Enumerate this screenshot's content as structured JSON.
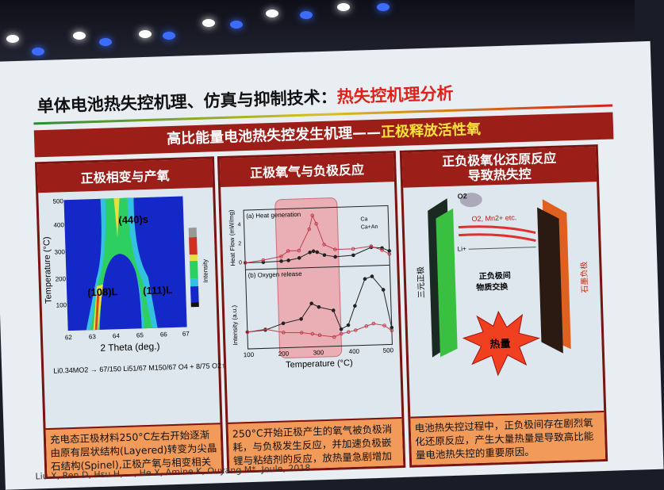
{
  "slide": {
    "title_main": "单体电池热失控机理、仿真与抑制技术：",
    "title_accent": "热失控机理分析",
    "banner_main": "高比能量电池热失控发生机理——",
    "banner_accent": "正极释放活性氧",
    "panels": [
      {
        "title": "正极相变与产氧",
        "ylabel": "Temperature (°C)",
        "xlabel": "2 Theta (deg.)",
        "colorbar_label": "Intensity",
        "yticks": [
          "100",
          "200",
          "300",
          "400",
          "500"
        ],
        "xticks": [
          "62",
          "63",
          "64",
          "65",
          "66",
          "67"
        ],
        "peaks": [
          "(440)s",
          "(108)L",
          "(111)L"
        ],
        "equation": "Li0.34MO2 → 67/150 Li51/67 M150/67 O4 + 8/75 O2↑",
        "text": "充电态正极材料250°C左右开始逐渐由原有层状结构(Layered)转变为尖晶石结构(Spinel),正极产氧与相变相关"
      },
      {
        "title": "正极氧气与负极反应",
        "ylabel_top": "Heat Flow (mW/mg)",
        "ylabel_bottom": "Intensity (a.u.)",
        "xlabel": "Temperature (°C)",
        "sub_a": "(a) Heat generation",
        "sub_b": "(b) Oxygen release",
        "xticks": [
          "100",
          "200",
          "300",
          "400",
          "500"
        ],
        "yticks_top": [
          "0",
          "2",
          "4"
        ],
        "legend": [
          "Ca",
          "Ca+An"
        ],
        "text": "250°C开始正极产生的氧气被负极消耗，与负极发生反应，并加速负极嵌锂与粘结剂的反应，放热量急剧增加"
      },
      {
        "title_line1": "正负极氧化还原反应",
        "title_line2": "导致热失控",
        "o2": "O2",
        "species": "O2, Mn2+ etc.",
        "li": "Li+",
        "left_label": "三元正极",
        "right_label": "石墨负极",
        "center_line1": "正负极间",
        "center_line2": "物质交换",
        "heat": "热量",
        "text": "电池热失控过程中，正负极间存在剧烈氧化还原反应，产生大量热量是导致高比能量电池热失控的重要原因。"
      }
    ],
    "citation": "Liu X, Ren D, Hsu H, ..., He X, Amine K, Ouyang M*. Joule, 2018"
  },
  "chart_data": [
    {
      "type": "line",
      "title": "(a) Heat generation",
      "xlabel": "Temperature (°C)",
      "ylabel": "Heat Flow (mW/mg)",
      "xlim": [
        100,
        500
      ],
      "ylim": [
        -0.5,
        5
      ],
      "x": [
        100,
        150,
        200,
        220,
        250,
        280,
        290,
        300,
        320,
        350,
        400,
        450,
        480,
        500
      ],
      "series": [
        {
          "name": "Ca",
          "values": [
            0,
            0,
            0.05,
            0.1,
            0.3,
            0.8,
            0.9,
            0.8,
            0.5,
            0.3,
            0.4,
            1.1,
            1,
            0.7
          ]
        },
        {
          "name": "Ca+An",
          "values": [
            0,
            0.2,
            0.5,
            1.0,
            1.0,
            3.0,
            4.3,
            3.5,
            1.5,
            1.0,
            1.0,
            1.2,
            0.8,
            0.4
          ]
        }
      ]
    },
    {
      "type": "line",
      "title": "(b) Oxygen release",
      "xlabel": "Temperature (°C)",
      "ylabel": "Intensity (a.u.)",
      "xlim": [
        100,
        500
      ],
      "ylim": [
        0,
        10
      ],
      "x": [
        100,
        150,
        200,
        250,
        280,
        300,
        340,
        360,
        380,
        400,
        430,
        450,
        480,
        500
      ],
      "series": [
        {
          "name": "Ca",
          "values": [
            2,
            2.2,
            3,
            3.5,
            5.5,
            5,
            4.5,
            2,
            2.5,
            5,
            8.5,
            8.8,
            7,
            2
          ]
        },
        {
          "name": "Ca+An",
          "values": [
            2,
            2.3,
            1.8,
            1.7,
            1.5,
            1.3,
            1,
            1.4,
            1.6,
            1.8,
            2.3,
            2.6,
            2.3,
            1.6
          ]
        }
      ]
    }
  ]
}
